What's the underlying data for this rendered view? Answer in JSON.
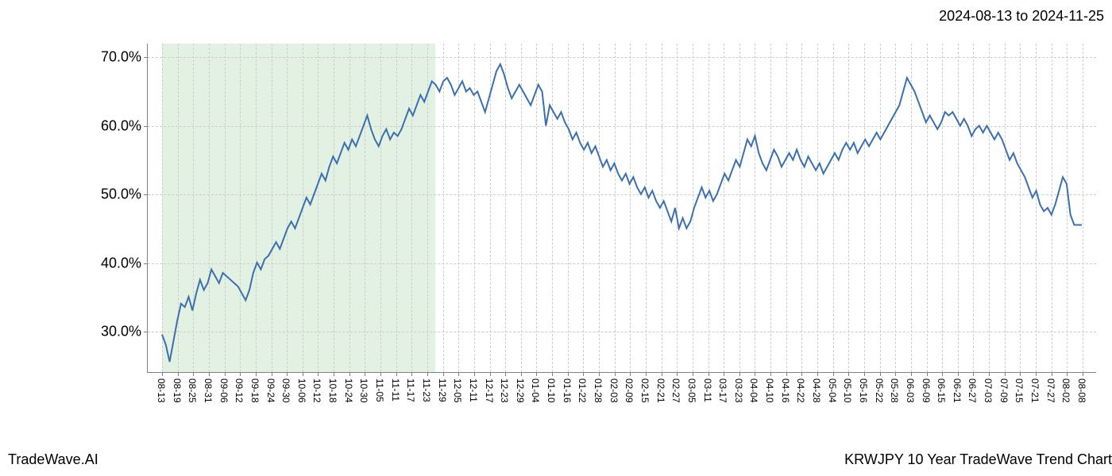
{
  "header": {
    "date_range": "2024-08-13 to 2024-11-25"
  },
  "footer": {
    "left": "TradeWave.AI",
    "right": "KRWJPY 10 Year TradeWave Trend Chart"
  },
  "chart": {
    "type": "line",
    "background_color": "#ffffff",
    "grid_color": "#cccccc",
    "axis_color": "#808080",
    "line_color": "#3a6fb0",
    "line_width": 2,
    "highlight_band": {
      "color": "rgba(144,198,144,0.25)",
      "x_start_index": 0,
      "x_end_index": 17
    },
    "ylim": [
      24,
      72
    ],
    "y_ticks": [
      30,
      40,
      50,
      60,
      70
    ],
    "y_tick_labels": [
      "30.0%",
      "40.0%",
      "50.0%",
      "60.0%",
      "70.0%"
    ],
    "y_label_fontsize": 18,
    "x_categories": [
      "08-13",
      "08-19",
      "08-25",
      "08-31",
      "09-06",
      "09-12",
      "09-18",
      "09-24",
      "09-30",
      "10-06",
      "10-12",
      "10-18",
      "10-24",
      "10-30",
      "11-05",
      "11-11",
      "11-17",
      "11-23",
      "11-29",
      "12-05",
      "12-11",
      "12-17",
      "12-23",
      "12-29",
      "01-04",
      "01-10",
      "01-16",
      "01-22",
      "01-28",
      "02-03",
      "02-09",
      "02-15",
      "02-21",
      "02-27",
      "03-05",
      "03-11",
      "03-17",
      "03-23",
      "04-04",
      "04-10",
      "04-16",
      "04-22",
      "04-28",
      "05-04",
      "05-10",
      "05-16",
      "05-22",
      "05-28",
      "06-03",
      "06-09",
      "06-15",
      "06-21",
      "06-27",
      "07-03",
      "07-09",
      "07-15",
      "07-21",
      "07-27",
      "08-02",
      "08-08"
    ],
    "x_label_fontsize": 12,
    "series_y": [
      29.5,
      28.0,
      25.5,
      28.5,
      31.5,
      34.0,
      33.5,
      35.0,
      33.0,
      35.5,
      37.5,
      36.0,
      37.0,
      39.0,
      38.0,
      37.0,
      38.5,
      38.0,
      37.5,
      37.0,
      36.5,
      35.5,
      34.5,
      36.0,
      38.5,
      40.0,
      39.0,
      40.5,
      41.0,
      42.0,
      43.0,
      42.0,
      43.5,
      45.0,
      46.0,
      45.0,
      46.5,
      48.0,
      49.5,
      48.5,
      50.0,
      51.5,
      53.0,
      52.0,
      54.0,
      55.5,
      54.5,
      56.0,
      57.5,
      56.5,
      58.0,
      57.0,
      58.5,
      60.0,
      61.5,
      59.5,
      58.0,
      57.0,
      58.5,
      59.5,
      58.0,
      59.0,
      58.5,
      59.5,
      61.0,
      62.5,
      61.5,
      63.0,
      64.5,
      63.5,
      65.0,
      66.5,
      66.0,
      65.0,
      66.5,
      67.0,
      66.0,
      64.5,
      65.5,
      66.5,
      65.0,
      65.5,
      64.5,
      65.0,
      63.5,
      62.0,
      64.0,
      66.0,
      68.0,
      69.0,
      67.5,
      65.5,
      64.0,
      65.0,
      66.0,
      65.0,
      64.0,
      63.0,
      64.5,
      66.0,
      65.0,
      60.0,
      63.0,
      62.0,
      61.0,
      62.0,
      60.5,
      59.5,
      58.0,
      59.0,
      57.5,
      56.5,
      57.5,
      56.0,
      57.0,
      55.5,
      54.0,
      55.0,
      53.5,
      54.5,
      53.0,
      52.0,
      53.0,
      51.5,
      52.5,
      51.0,
      50.0,
      51.0,
      49.5,
      50.5,
      49.0,
      48.0,
      49.0,
      47.5,
      46.0,
      48.0,
      45.0,
      46.5,
      45.0,
      46.0,
      48.0,
      49.5,
      51.0,
      49.5,
      50.5,
      49.0,
      50.0,
      51.5,
      53.0,
      52.0,
      53.5,
      55.0,
      54.0,
      56.0,
      58.0,
      57.0,
      58.5,
      56.0,
      54.5,
      53.5,
      55.0,
      56.5,
      55.5,
      54.0,
      55.0,
      56.0,
      55.0,
      56.5,
      55.0,
      54.0,
      55.5,
      54.5,
      53.5,
      54.5,
      53.0,
      54.0,
      55.0,
      56.0,
      55.0,
      56.5,
      57.5,
      56.5,
      57.5,
      56.0,
      57.0,
      58.0,
      57.0,
      58.0,
      59.0,
      58.0,
      59.0,
      60.0,
      61.0,
      62.0,
      63.0,
      65.0,
      67.0,
      66.0,
      65.0,
      63.5,
      62.0,
      60.5,
      61.5,
      60.5,
      59.5,
      60.5,
      62.0,
      61.5,
      62.0,
      61.0,
      60.0,
      61.0,
      60.0,
      58.5,
      59.5,
      60.0,
      59.0,
      60.0,
      59.0,
      58.0,
      59.0,
      58.0,
      56.5,
      55.0,
      56.0,
      54.5,
      53.5,
      52.5,
      51.0,
      49.5,
      50.5,
      48.5,
      47.5,
      48.0,
      47.0,
      48.5,
      50.5,
      52.5,
      51.5,
      47.0,
      45.5,
      45.5,
      45.5
    ]
  }
}
